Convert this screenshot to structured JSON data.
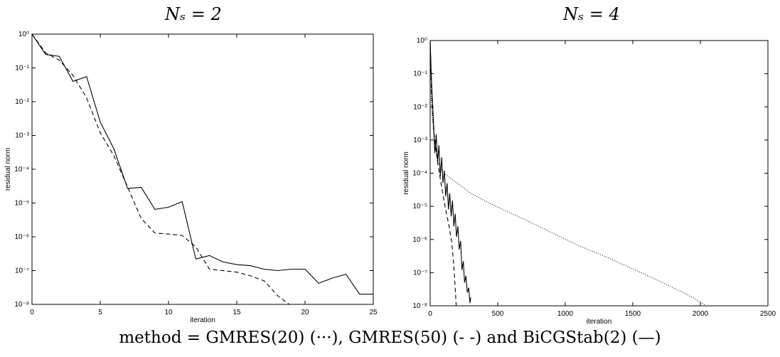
{
  "figure": {
    "caption": "method = GMRES(20) (···), GMRES(50) (- -) and BiCGStab(2) (—)"
  },
  "chart_data": [
    {
      "type": "line",
      "title": "N_s = 2",
      "title_display": "Nₛ = 2",
      "xlabel": "iteration",
      "ylabel": "residual norm",
      "xlim": [
        0,
        25
      ],
      "ylim_exponents": [
        -8,
        0
      ],
      "y_scale": "log",
      "x_ticks": [
        0,
        5,
        10,
        15,
        20,
        25
      ],
      "y_tick_exponents": [
        -8,
        -7,
        -6,
        -5,
        -4,
        -3,
        -2,
        -1,
        0
      ],
      "series": [
        {
          "style": "dashed",
          "points": [
            [
              0,
              1.0
            ],
            [
              1,
              0.28
            ],
            [
              2,
              0.17
            ],
            [
              3,
              0.06
            ],
            [
              4,
              0.013
            ],
            [
              5,
              0.0012
            ],
            [
              6,
              0.00025
            ],
            [
              7,
              3e-05
            ],
            [
              8,
              3.5e-06
            ],
            [
              9,
              1.3e-06
            ],
            [
              10,
              1.2e-06
            ],
            [
              11,
              1.1e-06
            ],
            [
              12,
              5e-07
            ],
            [
              13,
              1.1e-07
            ],
            [
              14,
              1e-07
            ],
            [
              15,
              9e-08
            ],
            [
              16,
              7e-08
            ],
            [
              17,
              5e-08
            ],
            [
              18,
              1.8e-08
            ],
            [
              19,
              9e-09
            ]
          ]
        },
        {
          "style": "solid",
          "points": [
            [
              0,
              1.0
            ],
            [
              1,
              0.25
            ],
            [
              2,
              0.22
            ],
            [
              3,
              0.04
            ],
            [
              4,
              0.055
            ],
            [
              5,
              0.0025
            ],
            [
              6,
              0.0004
            ],
            [
              7,
              2.7e-05
            ],
            [
              8,
              2.9e-05
            ],
            [
              9,
              6.5e-06
            ],
            [
              10,
              7.5e-06
            ],
            [
              11,
              1.1e-05
            ],
            [
              12,
              2.2e-07
            ],
            [
              13,
              2.8e-07
            ],
            [
              14,
              1.8e-07
            ],
            [
              15,
              1.5e-07
            ],
            [
              16,
              1.4e-07
            ],
            [
              17,
              1.1e-07
            ],
            [
              18,
              1e-07
            ],
            [
              19,
              1.1e-07
            ],
            [
              20,
              1.1e-07
            ],
            [
              21,
              4.2e-08
            ],
            [
              22,
              6e-08
            ],
            [
              23,
              7.8e-08
            ],
            [
              24,
              2e-08
            ],
            [
              25,
              2e-08
            ]
          ]
        }
      ]
    },
    {
      "type": "line",
      "title": "N_s = 4",
      "title_display": "Nₛ = 4",
      "xlabel": "iteration",
      "ylabel": "residual norm",
      "xlim": [
        0,
        2500
      ],
      "ylim_exponents": [
        -8,
        0
      ],
      "y_scale": "log",
      "x_ticks": [
        0,
        500,
        1000,
        1500,
        2000,
        2500
      ],
      "y_tick_exponents": [
        -8,
        -7,
        -6,
        -5,
        -4,
        -3,
        -2,
        -1,
        0
      ],
      "series": [
        {
          "style": "dotted",
          "points": [
            [
              0,
              1.0
            ],
            [
              10,
              0.01
            ],
            [
              30,
              0.001
            ],
            [
              60,
              0.0002
            ],
            [
              100,
              0.0001
            ],
            [
              200,
              5e-05
            ],
            [
              300,
              2.5e-05
            ],
            [
              400,
              1.5e-05
            ],
            [
              500,
              9.5e-06
            ],
            [
              700,
              4e-06
            ],
            [
              900,
              1.6e-06
            ],
            [
              1100,
              6.5e-07
            ],
            [
              1300,
              3e-07
            ],
            [
              1500,
              1.3e-07
            ],
            [
              1700,
              5.5e-08
            ],
            [
              1900,
              2.2e-08
            ],
            [
              2000,
              1.3e-08
            ],
            [
              2120,
              6.5e-09
            ]
          ]
        },
        {
          "style": "dashed",
          "points": [
            [
              0,
              1.0
            ],
            [
              10,
              0.03
            ],
            [
              25,
              0.002
            ],
            [
              50,
              0.0003
            ],
            [
              80,
              5e-05
            ],
            [
              110,
              1e-05
            ],
            [
              140,
              2.5e-06
            ],
            [
              160,
              8e-07
            ],
            [
              175,
              1.5e-07
            ],
            [
              185,
              3.5e-08
            ],
            [
              195,
              7e-09
            ]
          ]
        },
        {
          "style": "solid",
          "points": [
            [
              0,
              1.0
            ],
            [
              8,
              0.1
            ],
            [
              15,
              0.02
            ],
            [
              25,
              0.003
            ],
            [
              35,
              0.0004
            ],
            [
              45,
              0.0015
            ],
            [
              55,
              0.0002
            ],
            [
              65,
              0.0007
            ],
            [
              75,
              8e-05
            ],
            [
              85,
              0.0003
            ],
            [
              95,
              5e-05
            ],
            [
              105,
              0.00012
            ],
            [
              115,
              2e-05
            ],
            [
              125,
              5e-05
            ],
            [
              135,
              8e-06
            ],
            [
              145,
              2.5e-05
            ],
            [
              155,
              5e-06
            ],
            [
              165,
              1.5e-05
            ],
            [
              175,
              2.5e-06
            ],
            [
              185,
              6e-06
            ],
            [
              195,
              1.2e-06
            ],
            [
              205,
              2.5e-06
            ],
            [
              215,
              5e-07
            ],
            [
              225,
              9e-07
            ],
            [
              235,
              1.2e-07
            ],
            [
              245,
              2.2e-07
            ],
            [
              255,
              5e-08
            ],
            [
              265,
              8e-08
            ],
            [
              275,
              2.5e-08
            ],
            [
              285,
              3.5e-08
            ],
            [
              295,
              1.2e-08
            ],
            [
              300,
              1.8e-08
            ]
          ]
        }
      ]
    }
  ]
}
